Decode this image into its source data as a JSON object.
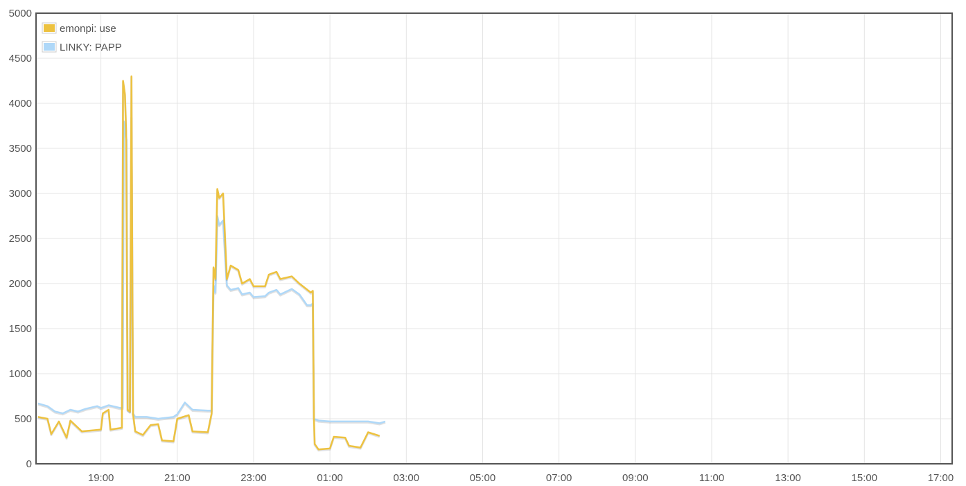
{
  "chart_data": {
    "type": "line",
    "title": "",
    "xlabel": "",
    "ylabel": "",
    "ylim": [
      0,
      5000
    ],
    "xlim": [
      17.3,
      26.45
    ],
    "grid": true,
    "legend_position": "top-left",
    "y_ticks": [
      "0",
      "500",
      "1000",
      "1500",
      "2000",
      "2500",
      "3000",
      "3500",
      "4000",
      "4500",
      "5000"
    ],
    "x_ticks": [
      {
        "x": 19,
        "label": "19:00"
      },
      {
        "x": 21,
        "label": "21:00"
      },
      {
        "x": 23,
        "label": "23:00"
      },
      {
        "x": 25,
        "label": "01:00"
      },
      {
        "x": 27,
        "label": "03:00"
      },
      {
        "x": 29,
        "label": "05:00"
      },
      {
        "x": 31,
        "label": "07:00"
      },
      {
        "x": 33,
        "label": "09:00"
      },
      {
        "x": 35,
        "label": "11:00"
      },
      {
        "x": 37,
        "label": "13:00"
      },
      {
        "x": 39,
        "label": "15:00"
      },
      {
        "x": 41,
        "label": "17:00"
      }
    ],
    "series": [
      {
        "name": "emonpi: use",
        "color": "#edc240",
        "points": [
          [
            17.35,
            520
          ],
          [
            17.6,
            500
          ],
          [
            17.7,
            330
          ],
          [
            17.9,
            470
          ],
          [
            18.1,
            290
          ],
          [
            18.2,
            480
          ],
          [
            18.5,
            360
          ],
          [
            19.0,
            380
          ],
          [
            19.05,
            560
          ],
          [
            19.2,
            600
          ],
          [
            19.25,
            380
          ],
          [
            19.55,
            400
          ],
          [
            19.58,
            4250
          ],
          [
            19.63,
            4100
          ],
          [
            19.66,
            3700
          ],
          [
            19.7,
            600
          ],
          [
            19.76,
            580
          ],
          [
            19.8,
            4300
          ],
          [
            19.84,
            560
          ],
          [
            19.9,
            360
          ],
          [
            20.1,
            320
          ],
          [
            20.3,
            430
          ],
          [
            20.5,
            440
          ],
          [
            20.6,
            260
          ],
          [
            20.9,
            250
          ],
          [
            21.0,
            500
          ],
          [
            21.3,
            540
          ],
          [
            21.4,
            360
          ],
          [
            21.8,
            350
          ],
          [
            21.9,
            560
          ],
          [
            21.95,
            2180
          ],
          [
            22.0,
            2050
          ],
          [
            22.05,
            3050
          ],
          [
            22.1,
            2950
          ],
          [
            22.2,
            3000
          ],
          [
            22.3,
            2050
          ],
          [
            22.4,
            2200
          ],
          [
            22.6,
            2150
          ],
          [
            22.7,
            2000
          ],
          [
            22.9,
            2050
          ],
          [
            23.0,
            1970
          ],
          [
            23.3,
            1970
          ],
          [
            23.4,
            2100
          ],
          [
            23.6,
            2130
          ],
          [
            23.7,
            2050
          ],
          [
            24.0,
            2080
          ],
          [
            24.2,
            2000
          ],
          [
            24.5,
            1900
          ],
          [
            24.55,
            1920
          ],
          [
            24.58,
            520
          ],
          [
            24.6,
            220
          ],
          [
            24.7,
            160
          ],
          [
            25.0,
            170
          ],
          [
            25.1,
            300
          ],
          [
            25.4,
            290
          ],
          [
            25.5,
            200
          ],
          [
            25.8,
            180
          ],
          [
            26.0,
            350
          ],
          [
            26.3,
            310
          ]
        ]
      },
      {
        "name": "LINKY: PAPP",
        "color": "#afd8f8",
        "points": [
          [
            17.35,
            670
          ],
          [
            17.6,
            640
          ],
          [
            17.8,
            580
          ],
          [
            18.0,
            560
          ],
          [
            18.2,
            600
          ],
          [
            18.4,
            580
          ],
          [
            18.6,
            610
          ],
          [
            18.9,
            640
          ],
          [
            19.0,
            620
          ],
          [
            19.2,
            650
          ],
          [
            19.5,
            620
          ],
          [
            19.57,
            620
          ],
          [
            19.6,
            3800
          ],
          [
            19.63,
            3700
          ],
          [
            19.67,
            3600
          ],
          [
            19.7,
            600
          ],
          [
            19.76,
            580
          ],
          [
            19.8,
            3850
          ],
          [
            19.84,
            560
          ],
          [
            19.9,
            520
          ],
          [
            20.2,
            520
          ],
          [
            20.5,
            500
          ],
          [
            20.9,
            520
          ],
          [
            21.0,
            550
          ],
          [
            21.2,
            680
          ],
          [
            21.4,
            600
          ],
          [
            21.8,
            590
          ],
          [
            21.9,
            590
          ],
          [
            21.95,
            1980
          ],
          [
            22.0,
            1900
          ],
          [
            22.05,
            2750
          ],
          [
            22.1,
            2650
          ],
          [
            22.2,
            2700
          ],
          [
            22.3,
            1980
          ],
          [
            22.4,
            1930
          ],
          [
            22.6,
            1950
          ],
          [
            22.7,
            1880
          ],
          [
            22.9,
            1900
          ],
          [
            23.0,
            1850
          ],
          [
            23.3,
            1860
          ],
          [
            23.4,
            1900
          ],
          [
            23.6,
            1930
          ],
          [
            23.7,
            1880
          ],
          [
            24.0,
            1940
          ],
          [
            24.2,
            1880
          ],
          [
            24.4,
            1760
          ],
          [
            24.5,
            1760
          ],
          [
            24.55,
            1780
          ],
          [
            24.58,
            500
          ],
          [
            24.7,
            480
          ],
          [
            25.0,
            470
          ],
          [
            25.5,
            470
          ],
          [
            26.0,
            470
          ],
          [
            26.3,
            450
          ],
          [
            26.45,
            470
          ]
        ]
      }
    ]
  }
}
